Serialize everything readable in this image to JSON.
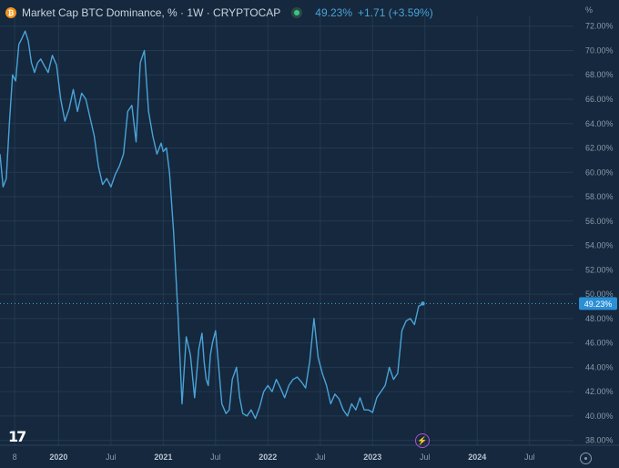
{
  "header": {
    "coin_icon": "bitcoin-icon",
    "title": "Market Cap BTC Dominance, % · 1W · CRYPTOCAP",
    "status_icon": "market-status-icon",
    "last_value": "49.23%",
    "change": "+1.71 (+3.59%)"
  },
  "axis_unit": "%",
  "logo": "TradingView",
  "icons": {
    "alert": "lightning-icon",
    "settings": "gear-icon"
  },
  "colors": {
    "background": "#15283d",
    "line": "#4aa3d8",
    "grid": "#223a52",
    "axis_text": "#8a99aa",
    "price_label_bg": "#2b8fd6"
  },
  "chart_data": {
    "type": "line",
    "title": "Market Cap BTC Dominance, % · 1W · CRYPTOCAP",
    "ylim": [
      37.6,
      72.8
    ],
    "y_ticks": [
      "72.00%",
      "70.00%",
      "68.00%",
      "66.00%",
      "64.00%",
      "62.00%",
      "60.00%",
      "58.00%",
      "56.00%",
      "54.00%",
      "52.00%",
      "50.00%",
      "48.00%",
      "46.00%",
      "44.00%",
      "42.00%",
      "40.00%",
      "38.00%"
    ],
    "x_ticks": [
      "8",
      "2020",
      "Jul",
      "2021",
      "Jul",
      "2022",
      "Jul",
      "2023",
      "Jul",
      "2024",
      "Jul"
    ],
    "x_tick_times": [
      2019.58,
      2020.0,
      2020.5,
      2021.0,
      2021.5,
      2022.0,
      2022.5,
      2023.0,
      2023.5,
      2024.0,
      2024.5
    ],
    "xlim": [
      2019.44,
      2024.92
    ],
    "last_value_label": "49.23%",
    "grid": true,
    "series": [
      {
        "x": [
          2019.44,
          2019.47,
          2019.5,
          2019.53,
          2019.56,
          2019.59,
          2019.62,
          2019.65,
          2019.68,
          2019.71,
          2019.74,
          2019.77,
          2019.8,
          2019.83,
          2019.86,
          2019.9,
          2019.94,
          2019.98,
          2020.02,
          2020.06,
          2020.1,
          2020.14,
          2020.18,
          2020.22,
          2020.26,
          2020.3,
          2020.34,
          2020.38,
          2020.42,
          2020.46,
          2020.5,
          2020.54,
          2020.58,
          2020.62,
          2020.66,
          2020.7,
          2020.74,
          2020.78,
          2020.82,
          2020.86,
          2020.9,
          2020.94,
          2020.98,
          2021.0,
          2021.03,
          2021.06,
          2021.1,
          2021.14,
          2021.18,
          2021.22,
          2021.26,
          2021.3,
          2021.34,
          2021.37,
          2021.39,
          2021.41,
          2021.43,
          2021.45,
          2021.47,
          2021.5,
          2021.53,
          2021.56,
          2021.6,
          2021.63,
          2021.66,
          2021.7,
          2021.73,
          2021.76,
          2021.8,
          2021.84,
          2021.88,
          2021.92,
          2021.96,
          2022.0,
          2022.04,
          2022.08,
          2022.12,
          2022.16,
          2022.2,
          2022.24,
          2022.28,
          2022.32,
          2022.36,
          2022.4,
          2022.44,
          2022.48,
          2022.52,
          2022.56,
          2022.6,
          2022.64,
          2022.68,
          2022.72,
          2022.76,
          2022.8,
          2022.84,
          2022.88,
          2022.92,
          2022.96,
          2023.0,
          2023.04,
          2023.08,
          2023.12,
          2023.16,
          2023.2,
          2023.24,
          2023.28,
          2023.32,
          2023.36,
          2023.4,
          2023.44,
          2023.48
        ],
        "values": [
          61.5,
          58.8,
          59.5,
          64.0,
          68.0,
          67.5,
          70.5,
          71.0,
          71.6,
          70.8,
          69.0,
          68.2,
          69.0,
          69.3,
          68.8,
          68.2,
          69.6,
          68.8,
          66.0,
          64.2,
          65.2,
          66.8,
          65.0,
          66.5,
          66.0,
          64.5,
          63.0,
          60.5,
          59.0,
          59.5,
          58.8,
          59.8,
          60.5,
          61.5,
          65.0,
          65.5,
          62.5,
          69.0,
          70.0,
          65.0,
          63.0,
          61.5,
          62.4,
          61.7,
          62.0,
          60.0,
          55.0,
          48.5,
          41.0,
          46.5,
          45.0,
          41.5,
          45.5,
          46.8,
          44.5,
          43.0,
          42.5,
          45.0,
          46.0,
          47.0,
          44.0,
          41.0,
          40.2,
          40.5,
          43.0,
          44.0,
          41.5,
          40.2,
          40.0,
          40.5,
          39.8,
          40.7,
          42.0,
          42.5,
          42.0,
          43.0,
          42.3,
          41.5,
          42.5,
          43.0,
          43.2,
          42.8,
          42.3,
          44.5,
          48.0,
          44.8,
          43.5,
          42.5,
          41.0,
          41.8,
          41.4,
          40.5,
          40.0,
          41.0,
          40.5,
          41.5,
          40.5,
          40.5,
          40.3,
          41.5,
          42.0,
          42.5,
          44.0,
          43.0,
          43.5,
          47.0,
          47.8,
          48.0,
          47.5,
          49.0,
          49.23
        ]
      }
    ]
  }
}
